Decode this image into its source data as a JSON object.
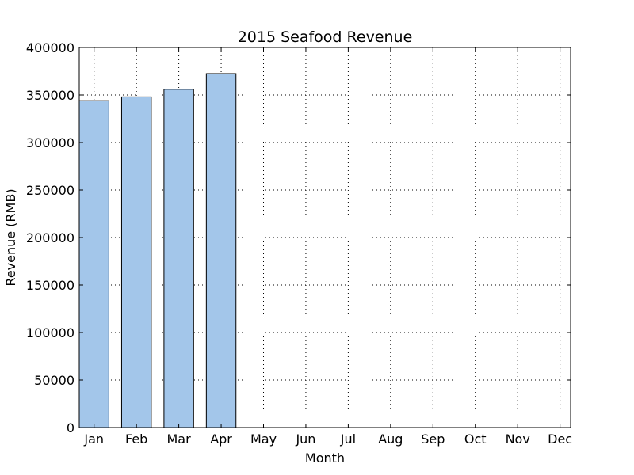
{
  "chart_data": {
    "type": "bar",
    "title": "2015 Seafood Revenue",
    "xlabel": "Month",
    "ylabel": "Revenue (RMB)",
    "categories": [
      "Jan",
      "Feb",
      "Mar",
      "Apr",
      "May",
      "Jun",
      "Jul",
      "Aug",
      "Sep",
      "Oct",
      "Nov",
      "Dec"
    ],
    "values": [
      344000,
      348000,
      356000,
      372500,
      0,
      0,
      0,
      0,
      0,
      0,
      0,
      0
    ],
    "ylim": [
      0,
      400000
    ],
    "yticks": [
      0,
      50000,
      100000,
      150000,
      200000,
      250000,
      300000,
      350000,
      400000
    ],
    "ytick_labels": [
      "0",
      "50000",
      "100000",
      "150000",
      "200000",
      "250000",
      "300000",
      "350000",
      "400000"
    ],
    "grid": true,
    "bar_color": "#a3c6ea",
    "edge_color": "#000000"
  }
}
